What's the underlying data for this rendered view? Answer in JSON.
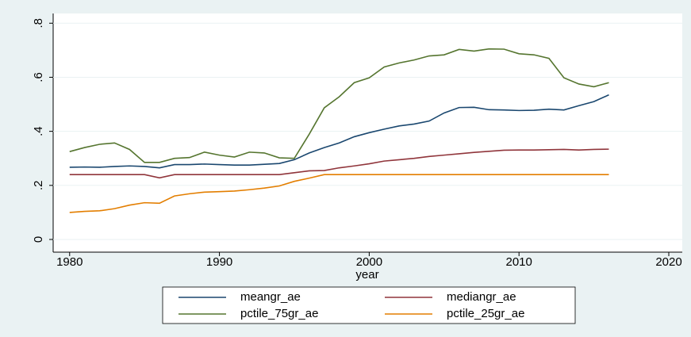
{
  "chart_data": {
    "type": "line",
    "x_label": "year",
    "x": [
      1980,
      1981,
      1982,
      1983,
      1984,
      1985,
      1986,
      1987,
      1988,
      1989,
      1990,
      1991,
      1992,
      1993,
      1994,
      1995,
      1996,
      1997,
      1998,
      1999,
      2000,
      2001,
      2002,
      2003,
      2004,
      2005,
      2006,
      2007,
      2008,
      2009,
      2010,
      2011,
      2012,
      2013,
      2014,
      2015,
      2016
    ],
    "series": [
      {
        "name": "meangr_ae",
        "color": "#1a476f",
        "values": [
          0.267,
          0.268,
          0.267,
          0.27,
          0.272,
          0.27,
          0.265,
          0.277,
          0.277,
          0.279,
          0.277,
          0.275,
          0.275,
          0.278,
          0.281,
          0.295,
          0.32,
          0.34,
          0.357,
          0.38,
          0.395,
          0.408,
          0.42,
          0.427,
          0.438,
          0.468,
          0.488,
          0.489,
          0.48,
          0.479,
          0.477,
          0.478,
          0.482,
          0.479,
          0.495,
          0.51,
          0.535
        ]
      },
      {
        "name": "mediangr_ae",
        "color": "#90353b",
        "values": [
          0.24,
          0.24,
          0.24,
          0.24,
          0.24,
          0.24,
          0.228,
          0.24,
          0.24,
          0.24,
          0.24,
          0.24,
          0.24,
          0.24,
          0.24,
          0.247,
          0.254,
          0.255,
          0.265,
          0.272,
          0.28,
          0.29,
          0.295,
          0.3,
          0.307,
          0.312,
          0.317,
          0.322,
          0.326,
          0.33,
          0.331,
          0.331,
          0.332,
          0.333,
          0.331,
          0.333,
          0.334
        ]
      },
      {
        "name": "pctile_75gr_ae",
        "color": "#55752f",
        "values": [
          0.325,
          0.34,
          0.352,
          0.357,
          0.333,
          0.285,
          0.285,
          0.3,
          0.303,
          0.323,
          0.312,
          0.305,
          0.323,
          0.32,
          0.302,
          0.3,
          0.39,
          0.487,
          0.528,
          0.58,
          0.598,
          0.638,
          0.653,
          0.664,
          0.679,
          0.683,
          0.703,
          0.697,
          0.705,
          0.704,
          0.687,
          0.683,
          0.67,
          0.598,
          0.575,
          0.565,
          0.58
        ]
      },
      {
        "name": "pctile_25gr_ae",
        "color": "#e37e00",
        "values": [
          0.1,
          0.104,
          0.106,
          0.114,
          0.127,
          0.136,
          0.134,
          0.161,
          0.169,
          0.175,
          0.177,
          0.179,
          0.184,
          0.19,
          0.198,
          0.215,
          0.227,
          0.24,
          0.24,
          0.24,
          0.24,
          0.24,
          0.24,
          0.24,
          0.24,
          0.24,
          0.24,
          0.24,
          0.24,
          0.24,
          0.24,
          0.24,
          0.24,
          0.24,
          0.24,
          0.24,
          0.24
        ]
      }
    ],
    "xlim": [
      1978.9,
      2020.9
    ],
    "xticks": [
      1980,
      1990,
      2000,
      2010,
      2020
    ],
    "ylim": [
      -0.047,
      0.836
    ],
    "yticks": [
      0,
      {
        "value": 0.2,
        "label": ".2"
      },
      {
        "value": 0.4,
        "label": ".4"
      },
      {
        "value": 0.6,
        "label": ".6"
      },
      {
        "value": 0.8,
        "label": ".8"
      }
    ],
    "grid": true
  }
}
